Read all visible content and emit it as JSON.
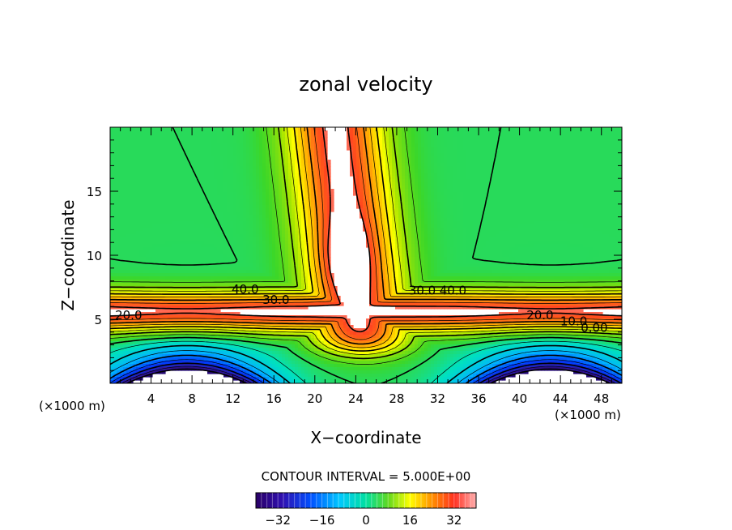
{
  "chart_data": {
    "type": "contour",
    "title": "zonal velocity",
    "xlabel": "X−coordinate",
    "ylabel": "Z−coordinate",
    "x_unit_left": "(×1000 m)",
    "x_unit_right": "(×1000 m)",
    "xlim": [
      0,
      50
    ],
    "ylim": [
      0,
      20
    ],
    "x_ticks": [
      {
        "value": 4,
        "label": "4"
      },
      {
        "value": 8,
        "label": "8"
      },
      {
        "value": 12,
        "label": "12"
      },
      {
        "value": 16,
        "label": "16"
      },
      {
        "value": 20,
        "label": "20"
      },
      {
        "value": 24,
        "label": "24"
      },
      {
        "value": 28,
        "label": "28"
      },
      {
        "value": 32,
        "label": "32"
      },
      {
        "value": 36,
        "label": "36"
      },
      {
        "value": 40,
        "label": "40"
      },
      {
        "value": 44,
        "label": "44"
      },
      {
        "value": 48,
        "label": "48"
      }
    ],
    "y_ticks": [
      {
        "value": 5,
        "label": "5"
      },
      {
        "value": 10,
        "label": "10"
      },
      {
        "value": 15,
        "label": "15"
      }
    ],
    "contour_labels": [
      {
        "text": "40.0",
        "x": 13.2,
        "y": 7.3
      },
      {
        "text": "30.0",
        "x": 16.2,
        "y": 6.5
      },
      {
        "text": "20.0",
        "x": 1.8,
        "y": 5.3
      },
      {
        "text": "30.0",
        "x": 30.5,
        "y": 7.2
      },
      {
        "text": "40.0",
        "x": 33.5,
        "y": 7.2
      },
      {
        "text": "20.0",
        "x": 42.0,
        "y": 5.3
      },
      {
        "text": "10.0",
        "x": 45.3,
        "y": 4.8
      },
      {
        "text": "0.00",
        "x": 47.3,
        "y": 4.3
      }
    ],
    "contour_interval_text": "CONTOUR INTERVAL = 5.000E+00",
    "colorbar": {
      "min": -40,
      "max": 40,
      "tick_labels": [
        {
          "value": -32,
          "label": "−32"
        },
        {
          "value": -16,
          "label": "−16"
        },
        {
          "value": 0,
          "label": "0"
        },
        {
          "value": 16,
          "label": "16"
        },
        {
          "value": 32,
          "label": "32"
        }
      ]
    },
    "colors": {
      "deep_negative": "#2a0066",
      "negative": "#0050ff",
      "zero": "#00e0c0",
      "mid": "#40d020",
      "low_positive": "#ffff00",
      "positive": "#ff8000",
      "high_positive": "#ff3020",
      "max": "#ffb0b0"
    }
  }
}
